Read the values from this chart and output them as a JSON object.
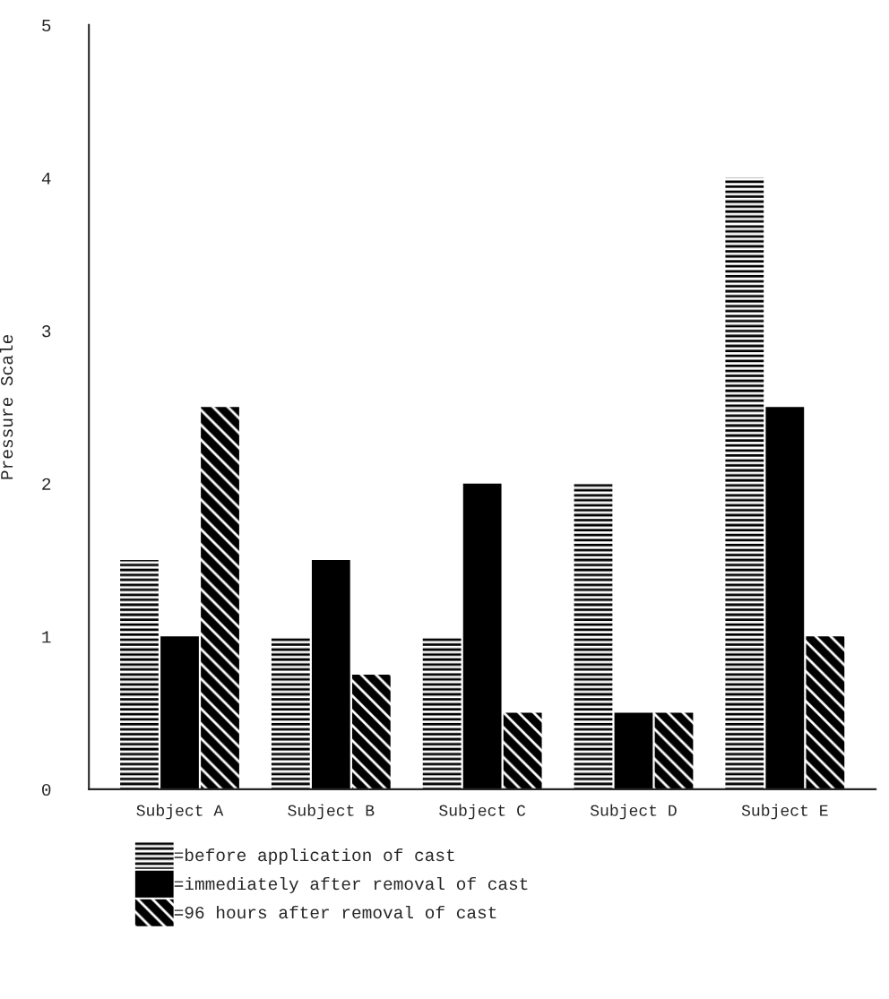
{
  "chart_data": {
    "type": "bar",
    "ylabel": "Pressure Scale",
    "categories": [
      "Subject A",
      "Subject B",
      "Subject C",
      "Subject D",
      "Subject E"
    ],
    "series": [
      {
        "name": "=before application of cast",
        "color": "#000000",
        "values": [
          1.5,
          1.0,
          1.0,
          2.0,
          4.0
        ]
      },
      {
        "name": "=immediately after removal of cast",
        "color": "#000000",
        "values": [
          1.0,
          1.5,
          2.0,
          0.5,
          2.5
        ]
      },
      {
        "name": "=96 hours after removal of cast",
        "color": "#000000",
        "values": [
          2.5,
          0.75,
          0.5,
          0.5,
          1.0
        ]
      }
    ],
    "ylim": [
      0,
      5
    ],
    "yticks": [
      0,
      1,
      2,
      3,
      4,
      5
    ],
    "grid": false,
    "legend": "bottom"
  }
}
